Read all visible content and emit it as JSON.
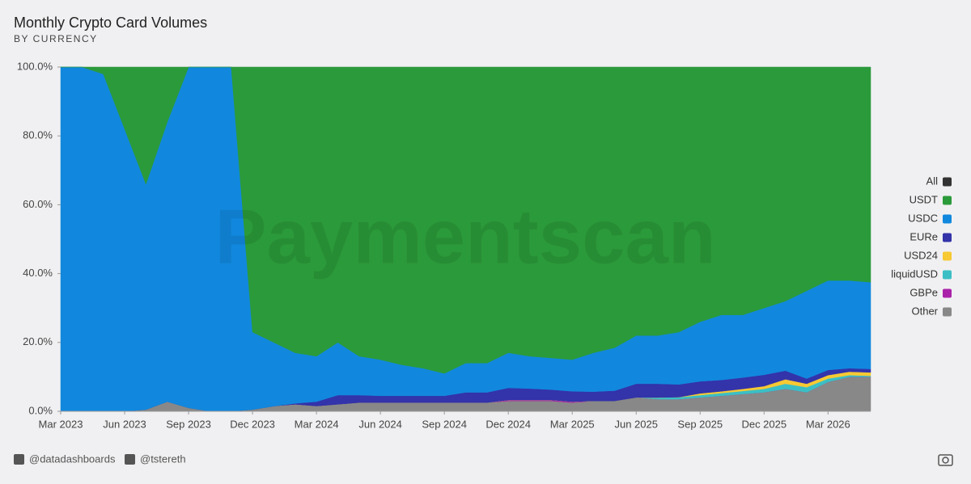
{
  "chart_data": {
    "type": "stacked_area",
    "title": "Monthly Crypto Card Volumes",
    "subtitle": "BY CURRENCY",
    "watermark": "Paymentscan",
    "categories": [
      "Mar 2023",
      null,
      null,
      "Jun 2023",
      null,
      null,
      "Sep 2023",
      null,
      null,
      "Dec 2023",
      null,
      null,
      "Mar 2024",
      null,
      null,
      "Jun 2024",
      null,
      null,
      "Sep 2024",
      null,
      null,
      "Dec 2024",
      null,
      null,
      "Mar 2025",
      null,
      null,
      "Jun 2025",
      null,
      null,
      "Sep 2025",
      null,
      null,
      "Dec 2025",
      null,
      null,
      "Mar 2026",
      null,
      null
    ],
    "ylim": [
      0,
      100
    ],
    "yticks": [
      {
        "value": 0,
        "label": "0.0%"
      },
      {
        "value": 20,
        "label": "20.0%"
      },
      {
        "value": 40,
        "label": "40.0%"
      },
      {
        "value": 60,
        "label": "60.0%"
      },
      {
        "value": 80,
        "label": "80.0%"
      },
      {
        "value": 100,
        "label": "100.0%"
      }
    ],
    "grid": true,
    "legend_position": "right",
    "legend_toggle": {
      "label": "All",
      "color": "#333333"
    },
    "series": [
      {
        "name": "USDT",
        "color": "#2b9a3a",
        "values": [
          0,
          0,
          2,
          18,
          34,
          16,
          0,
          0,
          0,
          77,
          80,
          83,
          84,
          80,
          84,
          85,
          86.5,
          87.5,
          89,
          86,
          86,
          83,
          84,
          84.5,
          85,
          83,
          81.5,
          78,
          78,
          77,
          74,
          72,
          72,
          70,
          68,
          65,
          62,
          62,
          62.5
        ]
      },
      {
        "name": "USDC",
        "color": "#1188dd",
        "values": [
          100,
          100,
          98,
          82,
          65.5,
          81.2,
          99,
          100,
          100,
          22.5,
          18.5,
          14.7,
          13.2,
          15.3,
          11.3,
          10.5,
          9,
          8,
          6.5,
          8.5,
          8.5,
          10.2,
          9.4,
          9.2,
          9.2,
          11.3,
          12.5,
          14,
          14,
          15.2,
          17.3,
          18.9,
          18.2,
          19.4,
          20.2,
          25.5,
          26,
          25.5,
          25.2
        ]
      },
      {
        "name": "EURe",
        "color": "#3333aa",
        "values": [
          0,
          0,
          0,
          0,
          0,
          0,
          0,
          0,
          0,
          0,
          0,
          0.3,
          1.3,
          2.7,
          2.2,
          2,
          2,
          2,
          2,
          3,
          3,
          3.5,
          3.3,
          3,
          3,
          2.7,
          3,
          4,
          4,
          3.7,
          3.5,
          3.3,
          3.3,
          3.3,
          2.5,
          1.5,
          1.5,
          1,
          1
        ]
      },
      {
        "name": "USD24",
        "color": "#f7c933",
        "values": [
          0,
          0,
          0,
          0,
          0,
          0,
          0,
          0,
          0,
          0,
          0,
          0,
          0,
          0,
          0,
          0,
          0,
          0,
          0,
          0,
          0,
          0,
          0,
          0,
          0,
          0,
          0,
          0,
          0,
          0,
          0.5,
          0.5,
          0.6,
          0.8,
          1.3,
          1,
          1,
          1,
          1
        ]
      },
      {
        "name": "liquidUSD",
        "color": "#3bbfc4",
        "values": [
          0,
          0,
          0,
          0,
          0,
          0,
          0,
          0,
          0,
          0,
          0,
          0,
          0,
          0,
          0,
          0,
          0,
          0,
          0,
          0,
          0,
          0,
          0,
          0,
          0,
          0,
          0,
          0,
          0.5,
          0.6,
          0.7,
          0.8,
          0.9,
          1,
          1.5,
          1.5,
          1,
          0.5,
          0.3
        ]
      },
      {
        "name": "GBPe",
        "color": "#aa22aa",
        "values": [
          0,
          0,
          0,
          0,
          0,
          0,
          0,
          0,
          0,
          0,
          0,
          0,
          0,
          0,
          0,
          0,
          0,
          0,
          0,
          0,
          0,
          0.3,
          0.3,
          0.3,
          0.3,
          0,
          0,
          0,
          0,
          0,
          0,
          0,
          0,
          0,
          0,
          0,
          0,
          0,
          0
        ]
      },
      {
        "name": "Other",
        "color": "#888888",
        "values": [
          0,
          0,
          0,
          0,
          0.5,
          2.8,
          1,
          0,
          0,
          0.5,
          1.5,
          2,
          1.5,
          2,
          2.5,
          2.5,
          2.5,
          2.5,
          2.5,
          2.5,
          2.5,
          3,
          3,
          3,
          2.5,
          3,
          3,
          4,
          3.5,
          3.5,
          4,
          4.5,
          5,
          5.5,
          6.5,
          5.5,
          8.5,
          10,
          10
        ]
      }
    ]
  },
  "footer": {
    "handles": [
      "@datadashboards",
      "@tstereth"
    ]
  }
}
